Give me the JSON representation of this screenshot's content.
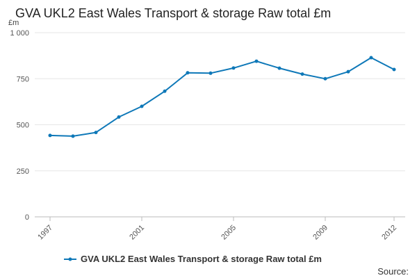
{
  "chart_data": {
    "type": "line",
    "title": "GVA UKL2 East Wales Transport & storage Raw total £m",
    "ylabel": "£m",
    "xlabel": "",
    "ylim": [
      0,
      1000
    ],
    "yticks": [
      0,
      250,
      500,
      750,
      1000
    ],
    "ytick_labels": [
      "0",
      "250",
      "500",
      "750",
      "1 000"
    ],
    "xlim": [
      1997,
      2012
    ],
    "xticks": [
      1997,
      2001,
      2005,
      2009,
      2012
    ],
    "xtick_labels": [
      "1997",
      "2001",
      "2005",
      "2009",
      "2012"
    ],
    "grid": true,
    "legend_position": "bottom",
    "series": [
      {
        "name": "GVA UKL2 East Wales Transport & storage Raw total £m",
        "color": "#0e78b8",
        "x": [
          1997,
          1998,
          1999,
          2000,
          2001,
          2002,
          2003,
          2004,
          2005,
          2006,
          2007,
          2008,
          2009,
          2010,
          2011,
          2012
        ],
        "values": [
          442,
          438,
          458,
          542,
          600,
          682,
          782,
          780,
          808,
          845,
          807,
          775,
          750,
          788,
          864,
          800
        ]
      }
    ]
  },
  "source_label": "Source:"
}
